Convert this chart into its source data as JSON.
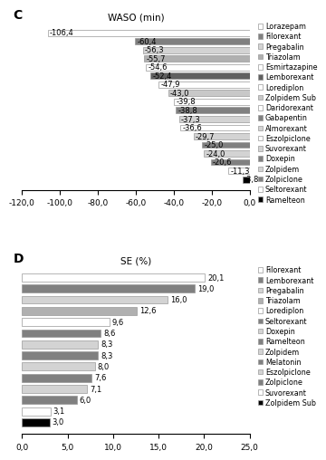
{
  "waso": {
    "title": "WASO (min)",
    "panel_label": "C",
    "categories": [
      "Lorazepam",
      "Filorexant",
      "Pregabalin",
      "Triazolam",
      "Esmirtazapine",
      "Lemborexant",
      "Lorediplon",
      "Zolpidem Sub",
      "Daridorexant",
      "Gabapentin",
      "Almorexant",
      "Eszolpiclone",
      "Suvorexant",
      "Doxepin",
      "Zolpidem",
      "Zolpiclone",
      "Seltorexant",
      "Ramelteon"
    ],
    "values": [
      -106.4,
      -60.4,
      -56.3,
      -55.7,
      -54.6,
      -52.4,
      -47.9,
      -43.0,
      -39.8,
      -38.8,
      -37.3,
      -36.6,
      -29.7,
      -25.0,
      -24.0,
      -20.6,
      -11.3,
      -3.8
    ],
    "colors": [
      "#ffffff",
      "#808080",
      "#d3d3d3",
      "#b0b0b0",
      "#ffffff",
      "#606060",
      "#ffffff",
      "#c8c8c8",
      "#ffffff",
      "#808080",
      "#d3d3d3",
      "#ffffff",
      "#d3d3d3",
      "#808080",
      "#d3d3d3",
      "#808080",
      "#ffffff",
      "#000000"
    ],
    "xlim": [
      -120,
      0
    ],
    "xticks": [
      -120,
      -100,
      -80,
      -60,
      -40,
      -20,
      0
    ],
    "xticklabels": [
      "-120,0",
      "-100,0",
      "-80,0",
      "-60,0",
      "-40,0",
      "-20,0",
      "0,0"
    ]
  },
  "se": {
    "title": "SE (%)",
    "panel_label": "D",
    "categories": [
      "Filorexant",
      "Lemborexant",
      "Pregabalin",
      "Triazolam",
      "Lorediplon",
      "Seltorexant",
      "Doxepin",
      "Ramelteon",
      "Zolpidem",
      "Melatonin",
      "Eszolpiclone",
      "Zolpiclone",
      "Suvorexant",
      "Zolpidem Sub"
    ],
    "values": [
      20.1,
      19.0,
      16.0,
      12.6,
      9.6,
      8.6,
      8.3,
      8.3,
      8.0,
      7.6,
      7.1,
      6.0,
      3.1,
      3.0
    ],
    "colors": [
      "#ffffff",
      "#808080",
      "#d3d3d3",
      "#b0b0b0",
      "#ffffff",
      "#808080",
      "#d3d3d3",
      "#808080",
      "#d3d3d3",
      "#808080",
      "#d3d3d3",
      "#808080",
      "#ffffff",
      "#000000"
    ],
    "xlim": [
      0,
      25
    ],
    "xticks": [
      0,
      5,
      10,
      15,
      20,
      25
    ],
    "xticklabels": [
      "0,0",
      "5,0",
      "10,0",
      "15,0",
      "20,0",
      "25,0"
    ]
  },
  "bar_height": 0.72,
  "fontsize": 6.5,
  "label_fontsize": 6.0,
  "legend_fontsize": 5.8,
  "edgecolor": "#999999"
}
